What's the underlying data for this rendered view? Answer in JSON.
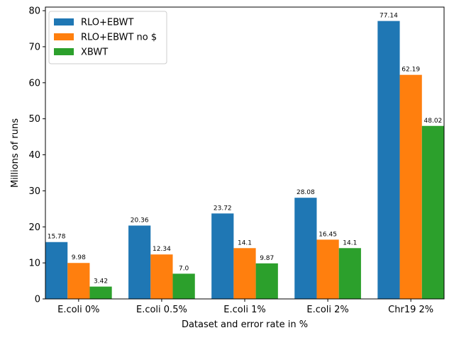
{
  "chart_data": {
    "type": "bar",
    "title": "",
    "xlabel": "Dataset and error rate in %",
    "ylabel": "Millions of runs",
    "ylim": [
      0,
      81
    ],
    "yticks": [
      0,
      10,
      20,
      30,
      40,
      50,
      60,
      70,
      80
    ],
    "grid": false,
    "legend_position": "top-left",
    "categories": [
      "E.coli 0%",
      "E.coli 0.5%",
      "E.coli 1%",
      "E.coli 2%",
      "Chr19 2%"
    ],
    "series": [
      {
        "name": "RLO+EBWT",
        "color": "#1f77b4",
        "values": [
          15.78,
          20.36,
          23.72,
          28.08,
          77.14
        ],
        "labels": [
          "15.78",
          "20.36",
          "23.72",
          "28.08",
          "77.14"
        ]
      },
      {
        "name": "RLO+EBWT no $",
        "color": "#ff7f0e",
        "values": [
          9.98,
          12.34,
          14.1,
          16.45,
          62.19
        ],
        "labels": [
          "9.98",
          "12.34",
          "14.1",
          "16.45",
          "62.19"
        ]
      },
      {
        "name": "XBWT",
        "color": "#2ca02c",
        "values": [
          3.42,
          7.0,
          9.87,
          14.1,
          48.02
        ],
        "labels": [
          "3.42",
          "7.0",
          "9.87",
          "14.1",
          "48.02"
        ]
      }
    ]
  }
}
